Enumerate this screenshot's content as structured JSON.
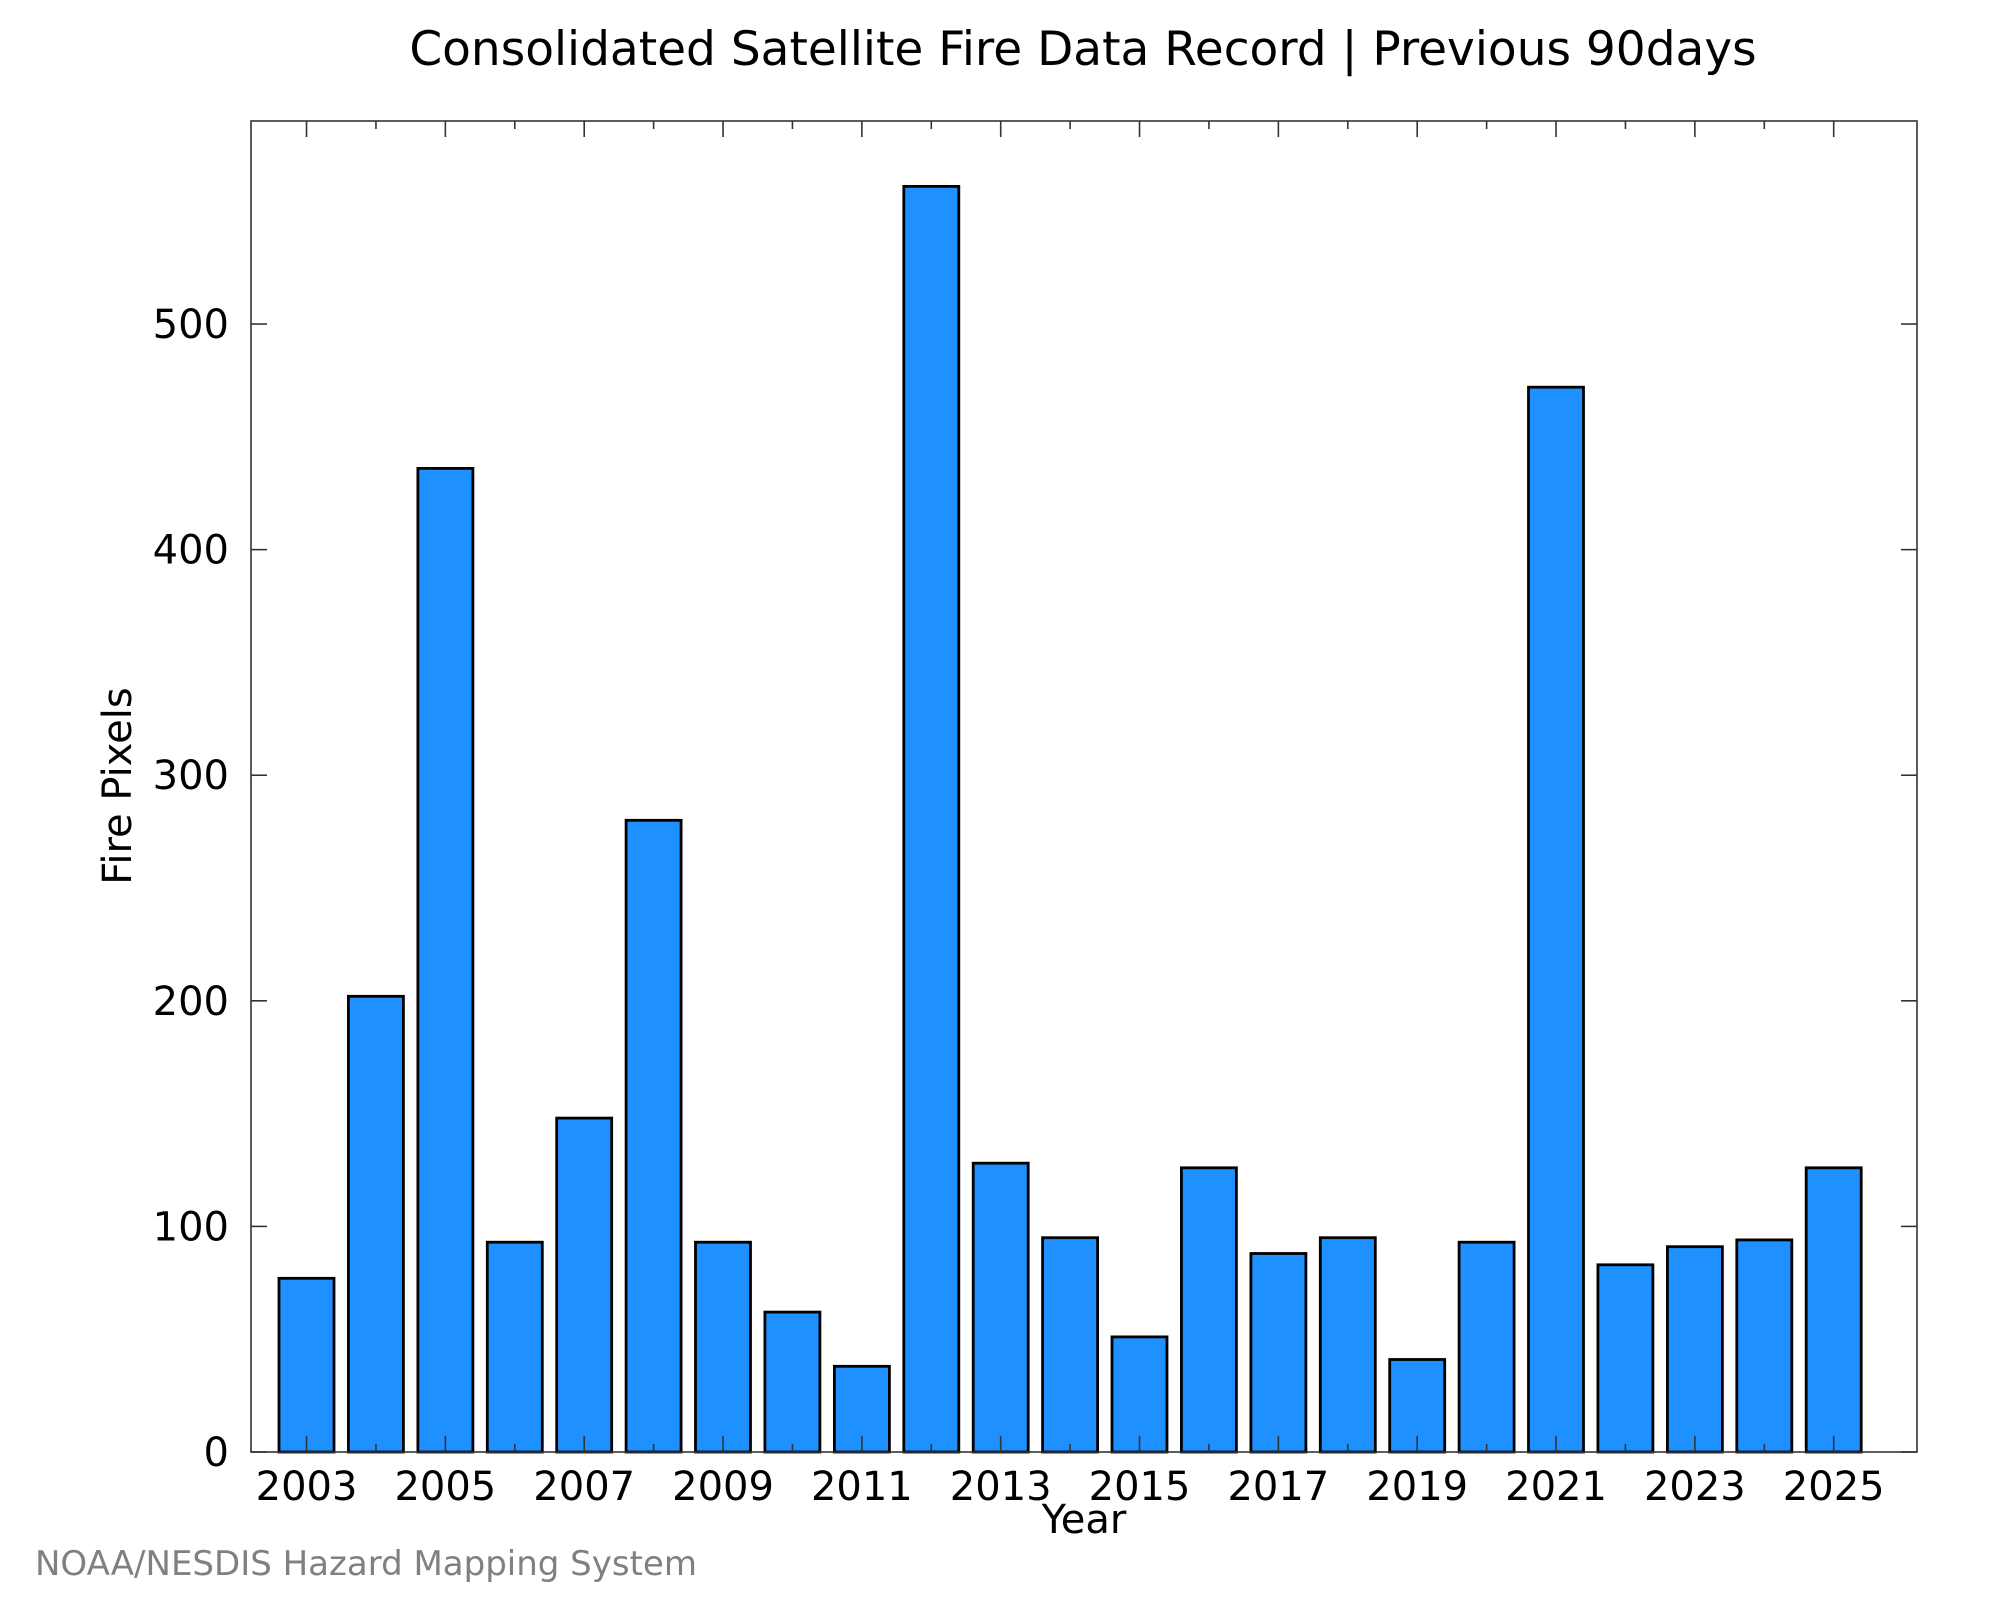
{
  "credit": "NOAA/NESDIS Hazard Mapping System",
  "colors": {
    "bar": "#1e90ff",
    "bar_edge": "#000000",
    "credit_text": "#808080"
  },
  "chart_data": {
    "type": "bar",
    "title": "Consolidated Satellite Fire Data Record | Previous 90days",
    "xlabel": "Year",
    "ylabel": "Fire Pixels",
    "categories": [
      "2003",
      "2004",
      "2005",
      "2006",
      "2007",
      "2008",
      "2009",
      "2010",
      "2011",
      "2012",
      "2013",
      "2014",
      "2015",
      "2016",
      "2017",
      "2018",
      "2019",
      "2020",
      "2021",
      "2022",
      "2023",
      "2024",
      "2025"
    ],
    "values": [
      77,
      202,
      436,
      93,
      148,
      280,
      93,
      62,
      38,
      561,
      128,
      95,
      51,
      126,
      88,
      95,
      41,
      93,
      472,
      83,
      91,
      94,
      126
    ],
    "xtick_labels": [
      "2003",
      "2005",
      "2007",
      "2009",
      "2011",
      "2013",
      "2015",
      "2017",
      "2019",
      "2021",
      "2023",
      "2025"
    ],
    "yticks": [
      0,
      100,
      200,
      300,
      400,
      500
    ],
    "ylim": [
      0,
      590
    ],
    "xlim": [
      2002.2,
      2026.2
    ],
    "grid": false,
    "legend": "none"
  }
}
